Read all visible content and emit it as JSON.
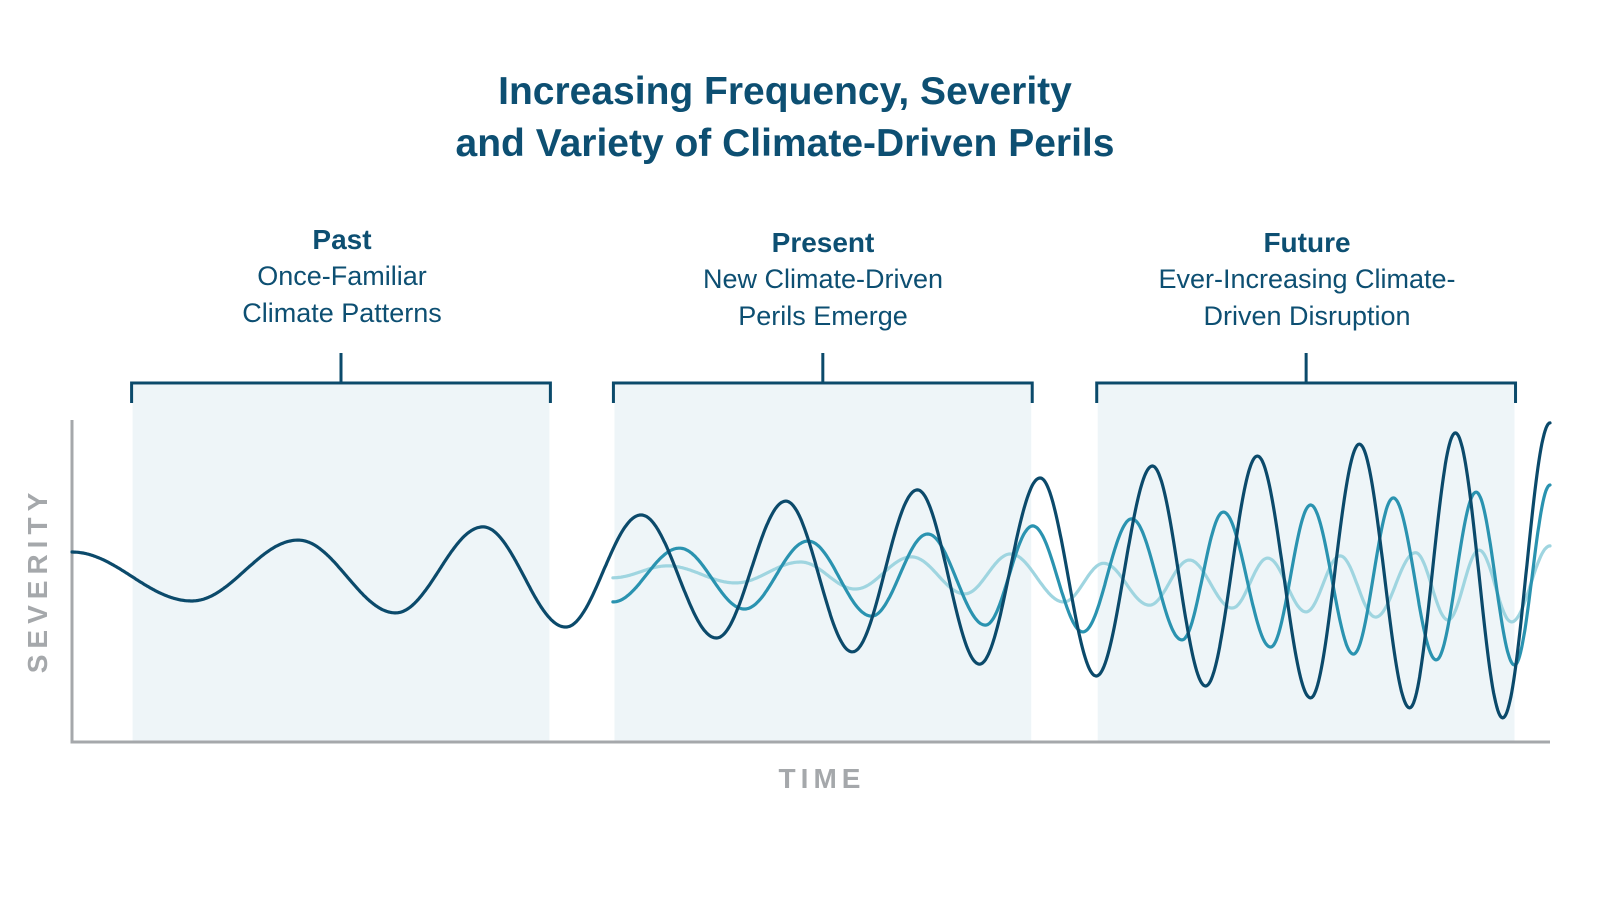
{
  "title_lines": [
    "Increasing Frequency, Severity",
    "and Variety of Climate-Driven Perils"
  ],
  "periods": [
    {
      "heading": "Past",
      "lines": [
        "Once-Familiar",
        "Climate Patterns"
      ],
      "range": [
        4.1,
        32.3
      ]
    },
    {
      "heading": "Present",
      "lines": [
        "New Climate-Driven",
        "Perils Emerge"
      ],
      "range": [
        36.7,
        64.9
      ]
    },
    {
      "heading": "Future",
      "lines": [
        "Ever-Increasing Climate-",
        "Driven Disruption"
      ],
      "range": [
        69.4,
        97.6
      ]
    }
  ],
  "chart_data": {
    "type": "line",
    "title": "Increasing Frequency, Severity and Variety of Climate-Driven Perils",
    "xlabel": "TIME",
    "ylabel": "SEVERITY",
    "xlim": [
      0,
      100
    ],
    "ylim": [
      0,
      100
    ],
    "grid": false,
    "ticks": false,
    "shaded_periods": [
      "Past",
      "Present",
      "Future"
    ],
    "series": [
      {
        "color": "#0b4a6b",
        "extrema": [
          [
            0,
            59.0
          ],
          [
            8.1,
            43.8
          ],
          [
            15.3,
            62.7
          ],
          [
            21.9,
            40.1
          ],
          [
            27.8,
            66.8
          ],
          [
            33.4,
            35.7
          ],
          [
            38.5,
            70.5
          ],
          [
            43.6,
            32.3
          ],
          [
            48.3,
            74.8
          ],
          [
            52.8,
            28.0
          ],
          [
            57.2,
            78.3
          ],
          [
            61.4,
            24.2
          ],
          [
            65.5,
            82.0
          ],
          [
            69.3,
            20.5
          ],
          [
            73.1,
            85.7
          ],
          [
            76.7,
            17.4
          ],
          [
            80.2,
            88.8
          ],
          [
            83.8,
            13.7
          ],
          [
            87.1,
            92.5
          ],
          [
            90.5,
            10.6
          ],
          [
            93.6,
            96.0
          ],
          [
            96.8,
            7.5
          ],
          [
            100,
            99.1
          ]
        ]
      },
      {
        "color": "#2a93b0",
        "extrema": [
          [
            36.6,
            43.5
          ],
          [
            41.1,
            60.2
          ],
          [
            45.5,
            41.3
          ],
          [
            49.8,
            62.4
          ],
          [
            54.1,
            39.1
          ],
          [
            57.9,
            64.6
          ],
          [
            61.8,
            36.3
          ],
          [
            65.0,
            67.1
          ],
          [
            68.4,
            34.2
          ],
          [
            71.7,
            69.3
          ],
          [
            75.1,
            31.7
          ],
          [
            77.9,
            71.4
          ],
          [
            81.1,
            29.5
          ],
          [
            83.8,
            73.6
          ],
          [
            86.7,
            27.3
          ],
          [
            89.4,
            75.8
          ],
          [
            92.3,
            25.5
          ],
          [
            95.0,
            77.6
          ],
          [
            97.6,
            23.9
          ],
          [
            100,
            79.8
          ]
        ]
      },
      {
        "color": "#9fd5e0",
        "extrema": [
          [
            36.6,
            51.0
          ],
          [
            40.3,
            54.7
          ],
          [
            44.9,
            49.4
          ],
          [
            49.3,
            55.9
          ],
          [
            53.0,
            47.5
          ],
          [
            56.8,
            57.5
          ],
          [
            60.4,
            46.0
          ],
          [
            63.5,
            58.4
          ],
          [
            67.1,
            43.5
          ],
          [
            69.8,
            55.5
          ],
          [
            72.9,
            42.5
          ],
          [
            75.6,
            56.5
          ],
          [
            78.5,
            41.6
          ],
          [
            80.9,
            57.1
          ],
          [
            83.5,
            40.4
          ],
          [
            85.8,
            57.8
          ],
          [
            88.2,
            38.8
          ],
          [
            90.9,
            58.8
          ],
          [
            93.1,
            37.9
          ],
          [
            95.2,
            59.6
          ],
          [
            97.4,
            37.3
          ],
          [
            100,
            60.9
          ]
        ]
      }
    ]
  },
  "colors": {
    "title": "#0d4f72",
    "shade": "#eef5f8",
    "axis": "#a5a8ab"
  }
}
